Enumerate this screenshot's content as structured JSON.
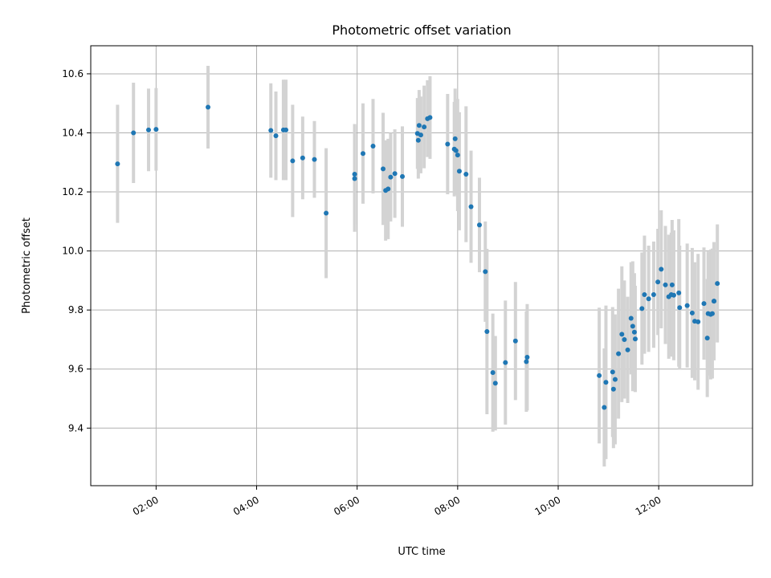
{
  "chart_data": {
    "type": "scatter",
    "title": "Photometric offset variation",
    "xlabel": "UTC time",
    "ylabel": "Photometric offset",
    "xlim": [
      "00:42",
      "13:52"
    ],
    "ylim": [
      9.205,
      10.695
    ],
    "xticks": [
      "02:00",
      "04:00",
      "06:00",
      "08:00",
      "10:00",
      "12:00"
    ],
    "yticks": [
      9.4,
      9.6,
      9.8,
      10.0,
      10.2,
      10.4,
      10.6
    ],
    "grid": true,
    "point_color": "#1f77b4",
    "errorbar_color": "#d3d3d3",
    "series": [
      {
        "x": [
          "01:14",
          "01:33",
          "01:51",
          "02:00",
          "03:02",
          "04:17",
          "04:23",
          "04:32",
          "04:35",
          "04:43",
          "04:55",
          "05:09",
          "05:23",
          "05:57",
          "05:57",
          "06:07",
          "06:19",
          "06:31",
          "06:34",
          "06:37",
          "06:40",
          "06:45",
          "06:54",
          "07:12",
          "07:13",
          "07:14",
          "07:16",
          "07:20",
          "07:24",
          "07:27",
          "07:48",
          "07:56",
          "07:57",
          "07:58",
          "08:00",
          "08:02",
          "08:10",
          "08:16",
          "08:26",
          "08:33",
          "08:35",
          "08:42",
          "08:45",
          "08:57",
          "09:09",
          "09:22",
          "09:23",
          "10:49",
          "10:55",
          "10:57",
          "11:05",
          "11:06",
          "11:08",
          "11:12",
          "11:16",
          "11:19",
          "11:23",
          "11:27",
          "11:29",
          "11:31",
          "11:32",
          "11:40",
          "11:43",
          "11:48",
          "11:54",
          "11:59",
          "12:03",
          "12:08",
          "12:12",
          "12:15",
          "12:16",
          "12:18",
          "12:24",
          "12:25",
          "12:34",
          "12:40",
          "12:43",
          "12:47",
          "12:54",
          "12:58",
          "12:59",
          "13:02",
          "13:06"
        ],
        "y": [
          10.295,
          10.4,
          10.41,
          10.412,
          10.487,
          10.408,
          10.39,
          10.41,
          10.41,
          10.305,
          10.315,
          10.31,
          10.128,
          10.26,
          10.245,
          10.33,
          10.355,
          10.278,
          10.205,
          10.21,
          10.25,
          10.262,
          10.252,
          10.398,
          10.375,
          10.425,
          10.393,
          10.42,
          10.448,
          10.452,
          10.362,
          10.345,
          10.38,
          10.34,
          10.325,
          10.27,
          10.26,
          10.15,
          10.088,
          9.93,
          9.727,
          9.588,
          9.552,
          9.622,
          9.695,
          9.625,
          9.64,
          9.578,
          9.47,
          9.555,
          9.59,
          9.532,
          9.565,
          9.652,
          9.718,
          9.7,
          9.665,
          9.772,
          9.745,
          9.725,
          9.702,
          9.805,
          9.852,
          9.838,
          9.852,
          9.895,
          9.938,
          9.885,
          9.845,
          9.852,
          9.885,
          9.85,
          9.858,
          9.808,
          9.815,
          9.79,
          9.762,
          9.76,
          9.822,
          9.705,
          9.788,
          9.785,
          9.83
        ],
        "err": [
          0.2,
          0.17,
          0.14,
          0.14,
          0.14,
          0.16,
          0.15,
          0.17,
          0.17,
          0.19,
          0.14,
          0.13,
          0.22,
          0.17,
          0.18,
          0.17,
          0.16,
          0.19,
          0.17,
          0.17,
          0.15,
          0.15,
          0.17,
          0.12,
          0.13,
          0.12,
          0.13,
          0.14,
          0.13,
          0.14,
          0.17,
          0.16,
          0.17,
          0.15,
          0.19,
          0.2,
          0.23,
          0.19,
          0.16,
          0.17,
          0.28,
          0.2,
          0.16,
          0.21,
          0.2,
          0.17,
          0.18,
          0.23,
          0.2,
          0.26,
          0.22,
          0.2,
          0.22,
          0.22,
          0.23,
          0.2,
          0.18,
          0.19,
          0.22,
          0.2,
          0.18,
          0.19,
          0.2,
          0.18,
          0.18,
          0.18,
          0.2,
          0.2,
          0.21,
          0.21,
          0.22,
          0.22,
          0.25,
          0.21,
          0.21,
          0.22,
          0.2,
          0.23,
          0.19,
          0.2,
          0.21,
          0.22,
          0.2
        ]
      },
      {
        "x": [
          "13:04",
          "13:06",
          "13:10"
        ],
        "y": [
          9.788,
          9.83,
          9.89
        ],
        "err": [
          0.22,
          0.2,
          0.2
        ]
      }
    ]
  }
}
